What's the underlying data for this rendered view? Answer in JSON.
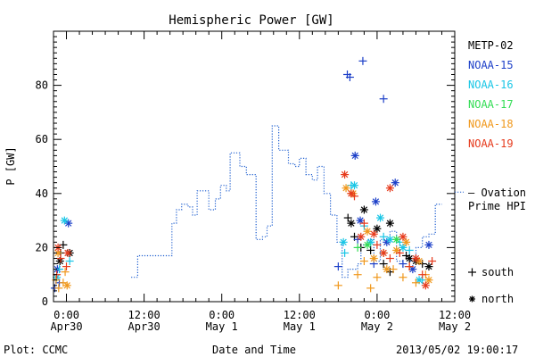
{
  "chart_data": {
    "type": "scatter",
    "title": "Hemispheric Power [GW]",
    "xlabel": "Date and Time",
    "ylabel": "P [GW]",
    "ylim": [
      0,
      100
    ],
    "xlim_hours": [
      -2,
      60
    ],
    "x_unit": "hours from 2013-04-30 00:00 UT",
    "y_ticks": [
      0,
      20,
      40,
      60,
      80
    ],
    "x_ticks": [
      {
        "h": 0,
        "line1": "0:00",
        "line2": "Apr30"
      },
      {
        "h": 12,
        "line1": "12:00",
        "line2": "Apr30"
      },
      {
        "h": 24,
        "line1": "0:00",
        "line2": "May 1"
      },
      {
        "h": 36,
        "line1": "12:00",
        "line2": "May 1"
      },
      {
        "h": 48,
        "line1": "0:00",
        "line2": "May 2"
      },
      {
        "h": 60,
        "line1": "12:00",
        "line2": "May 2"
      }
    ],
    "grid": false,
    "legend_position": "right",
    "footer_left": "Plot: CCMC",
    "footer_right": "2013/05/02 19:00:17",
    "ovation": {
      "label_line1": "— Ovation",
      "label_line2": "Prime HPI",
      "color": "#1f5fd0",
      "steps": [
        [
          10,
          9
        ],
        [
          11,
          17
        ],
        [
          16.3,
          17
        ],
        [
          16.3,
          29
        ],
        [
          17,
          34
        ],
        [
          17.8,
          36
        ],
        [
          18.8,
          35
        ],
        [
          19.5,
          32
        ],
        [
          20.2,
          41
        ],
        [
          22,
          34
        ],
        [
          23,
          38
        ],
        [
          23.8,
          43
        ],
        [
          24.7,
          41
        ],
        [
          25.3,
          55
        ],
        [
          26.8,
          50
        ],
        [
          27.8,
          47
        ],
        [
          29.3,
          23
        ],
        [
          30.3,
          24
        ],
        [
          31,
          28
        ],
        [
          31.8,
          65
        ],
        [
          32.8,
          56
        ],
        [
          34.3,
          51
        ],
        [
          35.3,
          50
        ],
        [
          36,
          53
        ],
        [
          37,
          47
        ],
        [
          38,
          45
        ],
        [
          38.8,
          50
        ],
        [
          39.8,
          40
        ],
        [
          40.8,
          32
        ],
        [
          41.8,
          22
        ],
        [
          42.6,
          9
        ],
        [
          43.5,
          12
        ],
        [
          45,
          14
        ],
        [
          45.5,
          21
        ],
        [
          46.5,
          23
        ],
        [
          47.5,
          15
        ],
        [
          48.5,
          23
        ],
        [
          50,
          26
        ],
        [
          51,
          15
        ],
        [
          52,
          13
        ],
        [
          53,
          15
        ],
        [
          54,
          20
        ],
        [
          55,
          24
        ],
        [
          56,
          25
        ],
        [
          57,
          36
        ]
      ]
    },
    "legend": [
      {
        "name": "METP-02",
        "color": "#000000"
      },
      {
        "name": "NOAA-15",
        "color": "#1c3fc8"
      },
      {
        "name": "NOAA-16",
        "color": "#19c6e6"
      },
      {
        "name": "NOAA-17",
        "color": "#33dd55"
      },
      {
        "name": "NOAA-18",
        "color": "#f0981c"
      },
      {
        "name": "NOAA-19",
        "color": "#e63a1c"
      }
    ],
    "marker_legend": [
      {
        "glyph": "+",
        "label": "south"
      },
      {
        "glyph": "*",
        "label": "north"
      }
    ],
    "series": [
      {
        "name": "METP-02",
        "color": "#000000",
        "south": [
          [
            -0.5,
            21
          ],
          [
            -0.9,
            18
          ],
          [
            43.5,
            31
          ],
          [
            44.5,
            24
          ],
          [
            45.5,
            20
          ],
          [
            47,
            19
          ],
          [
            49,
            14
          ],
          [
            50,
            11
          ],
          [
            52.5,
            17
          ],
          [
            55,
            14
          ]
        ],
        "north": [
          [
            0.5,
            18
          ],
          [
            -1,
            15
          ],
          [
            44,
            29
          ],
          [
            46,
            34
          ],
          [
            48,
            27
          ],
          [
            50,
            29
          ],
          [
            53,
            16
          ],
          [
            54,
            15
          ],
          [
            56,
            13
          ]
        ]
      },
      {
        "name": "NOAA-15",
        "color": "#1c3fc8",
        "south": [
          [
            -1.8,
            5
          ],
          [
            -1.1,
            7
          ],
          [
            43.4,
            84
          ],
          [
            43.8,
            83
          ],
          [
            45.8,
            89
          ],
          [
            49,
            75
          ],
          [
            42,
            13
          ],
          [
            45,
            23
          ],
          [
            47.5,
            14
          ],
          [
            52,
            14
          ],
          [
            54,
            16
          ]
        ],
        "north": [
          [
            -1.4,
            12
          ],
          [
            0.3,
            29
          ],
          [
            44.6,
            54
          ],
          [
            45.4,
            30
          ],
          [
            47.8,
            37
          ],
          [
            50.8,
            44
          ],
          [
            49.5,
            22
          ],
          [
            53.5,
            12
          ],
          [
            56,
            21
          ]
        ]
      },
      {
        "name": "NOAA-16",
        "color": "#19c6e6",
        "south": [
          [
            -1.1,
            12
          ],
          [
            0.5,
            15
          ],
          [
            43,
            18
          ],
          [
            44,
            43
          ],
          [
            46,
            28
          ],
          [
            49,
            24
          ],
          [
            51.5,
            22
          ],
          [
            53,
            19
          ],
          [
            55,
            8
          ]
        ],
        "north": [
          [
            -0.3,
            30
          ],
          [
            -1.5,
            9
          ],
          [
            42.8,
            22
          ],
          [
            44.5,
            43
          ],
          [
            47,
            22
          ],
          [
            48.5,
            31
          ],
          [
            50,
            23
          ],
          [
            52,
            20
          ],
          [
            54.5,
            8
          ]
        ]
      },
      {
        "name": "NOAA-17",
        "color": "#33dd55",
        "south": [
          [
            45,
            20
          ],
          [
            49,
            18
          ]
        ],
        "north": [
          [
            46.5,
            21
          ],
          [
            51,
            23
          ]
        ]
      },
      {
        "name": "NOAA-18",
        "color": "#f0981c",
        "south": [
          [
            -1.6,
            8
          ],
          [
            -0.5,
            7
          ],
          [
            -1.2,
            5
          ],
          [
            -0.2,
            11
          ],
          [
            42,
            6
          ],
          [
            44,
            40
          ],
          [
            45,
            10
          ],
          [
            46,
            15
          ],
          [
            47,
            5
          ],
          [
            48,
            9
          ],
          [
            49,
            18
          ],
          [
            50.5,
            12
          ],
          [
            52,
            9
          ],
          [
            53,
            13
          ],
          [
            54,
            7
          ],
          [
            55.5,
            10
          ]
        ],
        "north": [
          [
            -1.3,
            18
          ],
          [
            0.1,
            6
          ],
          [
            43.2,
            42
          ],
          [
            44.3,
            40
          ],
          [
            46.5,
            26
          ],
          [
            47.5,
            16
          ],
          [
            49.5,
            12
          ],
          [
            51,
            19
          ],
          [
            52.5,
            22
          ],
          [
            54.5,
            15
          ],
          [
            56,
            8
          ]
        ]
      },
      {
        "name": "NOAA-19",
        "color": "#e63a1c",
        "south": [
          [
            -0.9,
            16
          ],
          [
            0,
            13
          ],
          [
            -1.5,
            10
          ],
          [
            44.5,
            39
          ],
          [
            46,
            29
          ],
          [
            48,
            21
          ],
          [
            50,
            16
          ],
          [
            51.5,
            18
          ],
          [
            53,
            13
          ],
          [
            55,
            10
          ],
          [
            56.5,
            15
          ]
        ],
        "north": [
          [
            -1.3,
            20
          ],
          [
            0.2,
            18
          ],
          [
            43,
            47
          ],
          [
            44,
            40
          ],
          [
            45.5,
            24
          ],
          [
            47.5,
            25
          ],
          [
            49,
            18
          ],
          [
            50,
            42
          ],
          [
            52,
            24
          ],
          [
            54,
            16
          ],
          [
            55.5,
            6
          ]
        ]
      }
    ]
  }
}
